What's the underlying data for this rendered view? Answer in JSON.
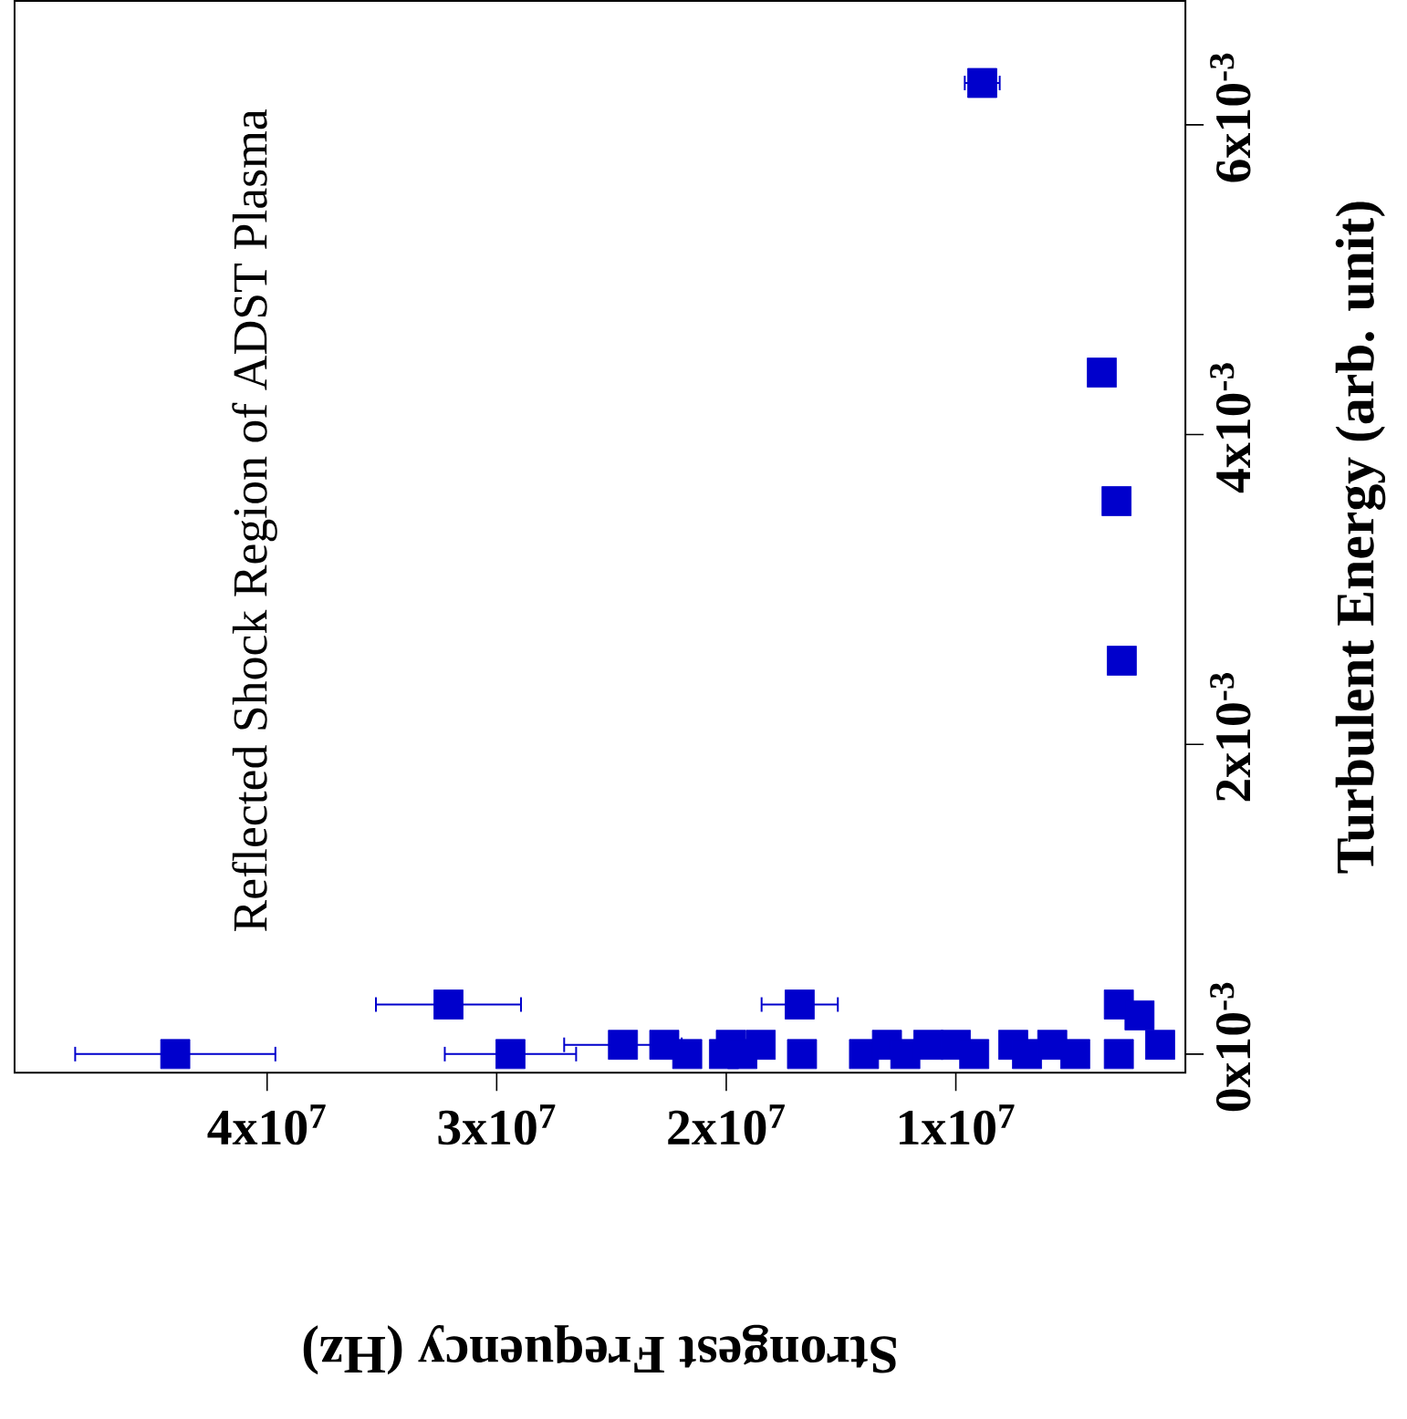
{
  "chart_data": {
    "type": "scatter",
    "title": "Reflected Shock Region of ADST Plasma",
    "xlabel": "Strongest Frequency (Hz)",
    "ylabel": "Turbulent Energy (arb. unit)",
    "xlim": [
      51000000,
      0
    ],
    "ylim": [
      -0.00012,
      0.0068
    ],
    "xticks": [
      {
        "value": 10000000,
        "label": "1x10$^{7}$"
      },
      {
        "value": 20000000,
        "label": "2x10$^{7}$"
      },
      {
        "value": 30000000,
        "label": "3x10$^{7}$"
      },
      {
        "value": 40000000,
        "label": "4x10$^{7}$"
      }
    ],
    "yticks": [
      {
        "value": 0,
        "label": "0x10$^{-3}$"
      },
      {
        "value": 0.002,
        "label": "2x10$^{-3}$"
      },
      {
        "value": 0.004,
        "label": "4x10$^{-3}$"
      },
      {
        "value": 0.006,
        "label": "6x10$^{-3}$"
      }
    ],
    "marker": "square",
    "grid": false,
    "series": [
      {
        "color": "#0000cc",
        "x": [
          44000000,
          32100000,
          29400000,
          24500000,
          22700000,
          21700000,
          20100000,
          19800000,
          19300000,
          18500000,
          16800000,
          16700000,
          14000000,
          13000000,
          12200000,
          11200000,
          10000000,
          9200000,
          7500000,
          6900000,
          5800000,
          4800000,
          8850000,
          3640000,
          3000000,
          2770000,
          2900000,
          2900000,
          2000000,
          1100000
        ],
        "values": [
          0,
          0.00032,
          0,
          6e-05,
          6e-05,
          0,
          0,
          6e-05,
          0,
          6e-05,
          0.00032,
          0,
          0,
          6e-05,
          0,
          6e-05,
          6e-05,
          0,
          6e-05,
          0,
          6e-05,
          0,
          0.00627,
          0.0044,
          0.00357,
          0.00254,
          0.00032,
          0,
          0.00025,
          6e-05
        ],
        "xerrors": [
          4400000,
          3200000,
          2900000,
          2600000,
          null,
          null,
          null,
          null,
          null,
          null,
          1700000,
          null,
          null,
          null,
          null,
          null,
          null,
          null,
          null,
          null,
          null,
          null,
          800000,
          null,
          null,
          null,
          null,
          null,
          null,
          null
        ]
      }
    ]
  }
}
